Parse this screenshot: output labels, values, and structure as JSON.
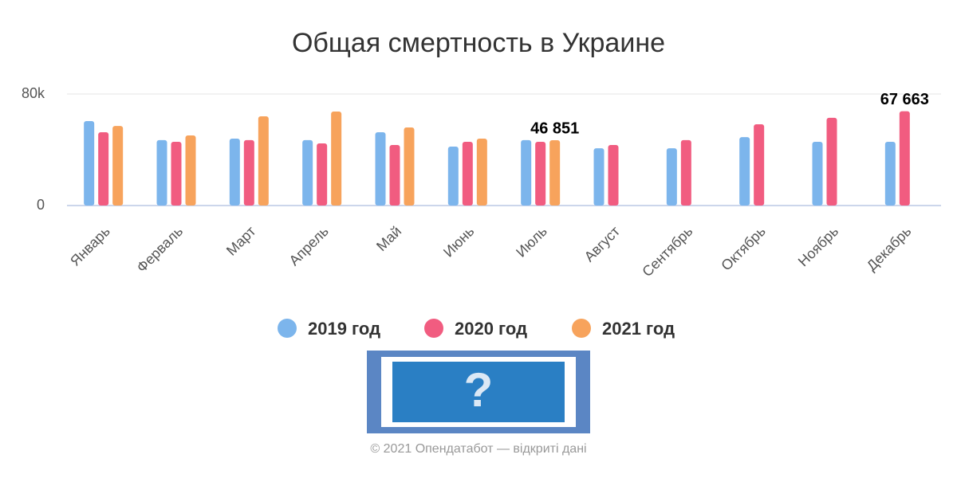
{
  "chart_data": {
    "type": "bar",
    "title": "Общая смертность в Украине",
    "categories": [
      "Январь",
      "Ферваль",
      "Март",
      "Апрель",
      "Май",
      "Июнь",
      "Июль",
      "Август",
      "Сентябрь",
      "Октябрь",
      "Ноябрь",
      "Декабрь"
    ],
    "series": [
      {
        "name": "2019 год",
        "color": "#7cb5ec",
        "values": [
          60600,
          46900,
          48000,
          46900,
          52600,
          42300,
          46900,
          41100,
          41100,
          49100,
          45700,
          45700
        ]
      },
      {
        "name": "2020 год",
        "color": "#f15c80",
        "values": [
          52600,
          45700,
          46900,
          44600,
          43400,
          45700,
          45700,
          43400,
          46900,
          58300,
          62900,
          67663
        ],
        "value_labels": [
          null,
          null,
          null,
          null,
          null,
          null,
          null,
          null,
          null,
          null,
          null,
          "67 663"
        ]
      },
      {
        "name": "2021 год",
        "color": "#f7a35c",
        "values": [
          57100,
          50300,
          64000,
          67400,
          56000,
          48000,
          46851,
          null,
          null,
          null,
          null,
          null
        ],
        "value_labels": [
          null,
          null,
          null,
          null,
          null,
          null,
          "46 851",
          null,
          null,
          null,
          null,
          null
        ]
      }
    ],
    "ylim": [
      0,
      80000
    ],
    "yticks": [
      0,
      {
        "value": 80000,
        "label": "80k"
      }
    ],
    "grid": true
  },
  "footer": "© 2021 Опендатабот — відкриті дані"
}
